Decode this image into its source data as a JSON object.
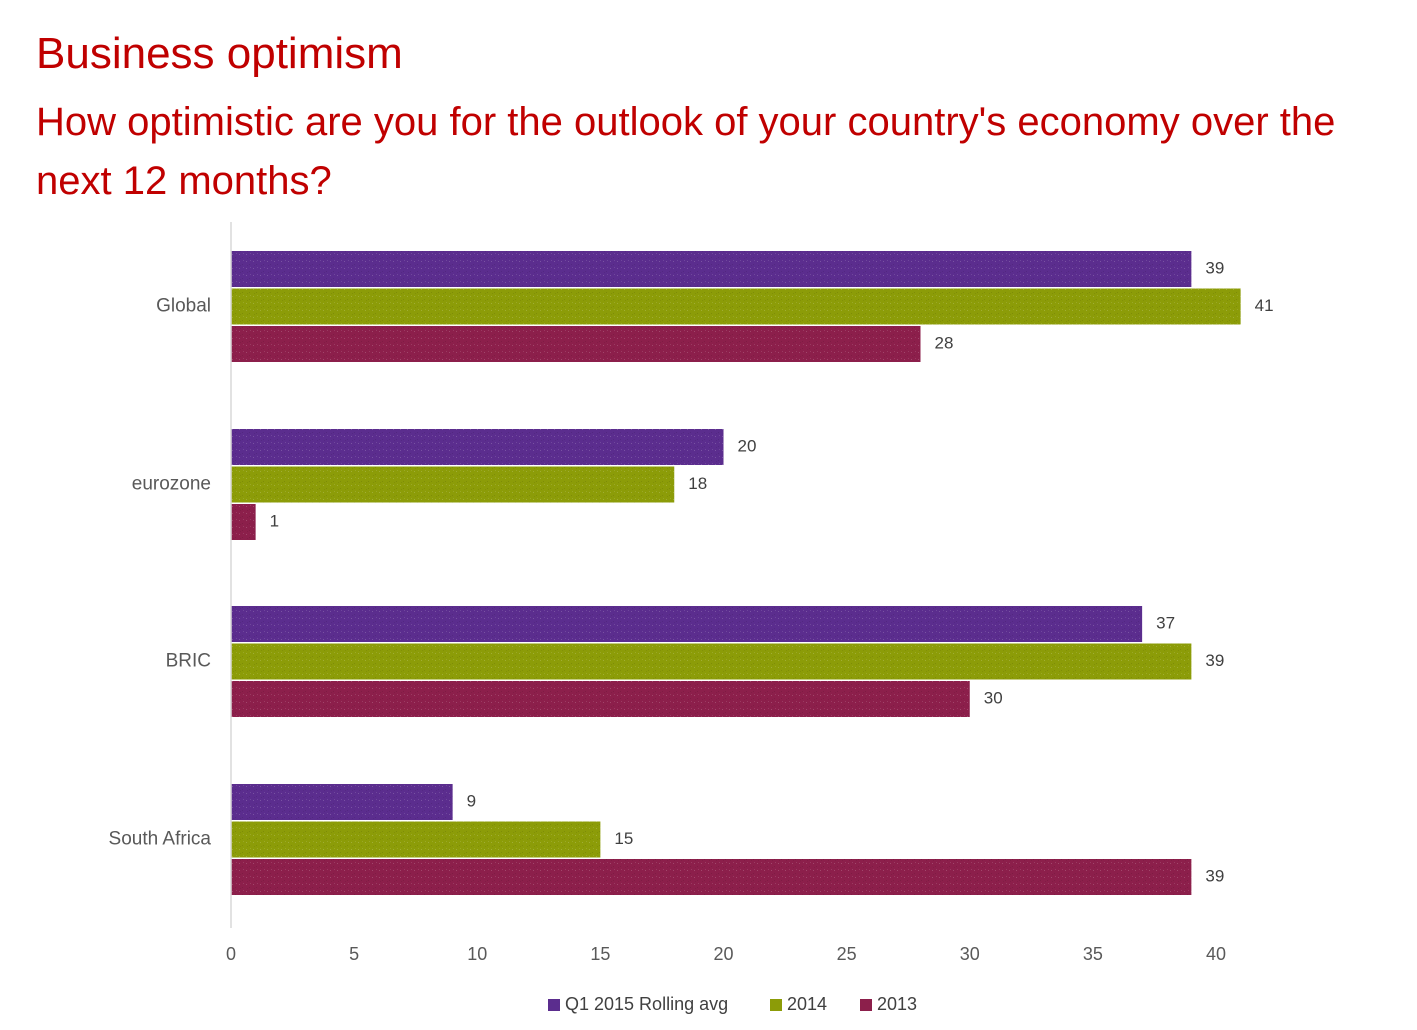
{
  "slide": {
    "title": "Business optimism",
    "subtitle": "How optimistic are you for the outlook of your country's economy over the next 12 months?"
  },
  "chart_data": {
    "type": "bar",
    "orientation": "horizontal",
    "title": "",
    "xlabel": "",
    "ylabel": "",
    "categories": [
      "Global",
      "eurozone",
      "BRIC",
      "South Africa"
    ],
    "series": [
      {
        "name": "Q1 2015 Rolling avg",
        "color": "#5b2d8e",
        "values": [
          39,
          20,
          37,
          9
        ]
      },
      {
        "name": "2014",
        "color": "#8c9c08",
        "values": [
          41,
          18,
          39,
          15
        ]
      },
      {
        "name": "2013",
        "color": "#8c1f4b",
        "values": [
          28,
          1,
          30,
          39
        ]
      }
    ],
    "xlim": [
      0,
      40
    ],
    "xticks": [
      0,
      5,
      10,
      15,
      20,
      25,
      30,
      35,
      40
    ],
    "grid": false,
    "legend_position": "bottom",
    "data_labels": true
  }
}
